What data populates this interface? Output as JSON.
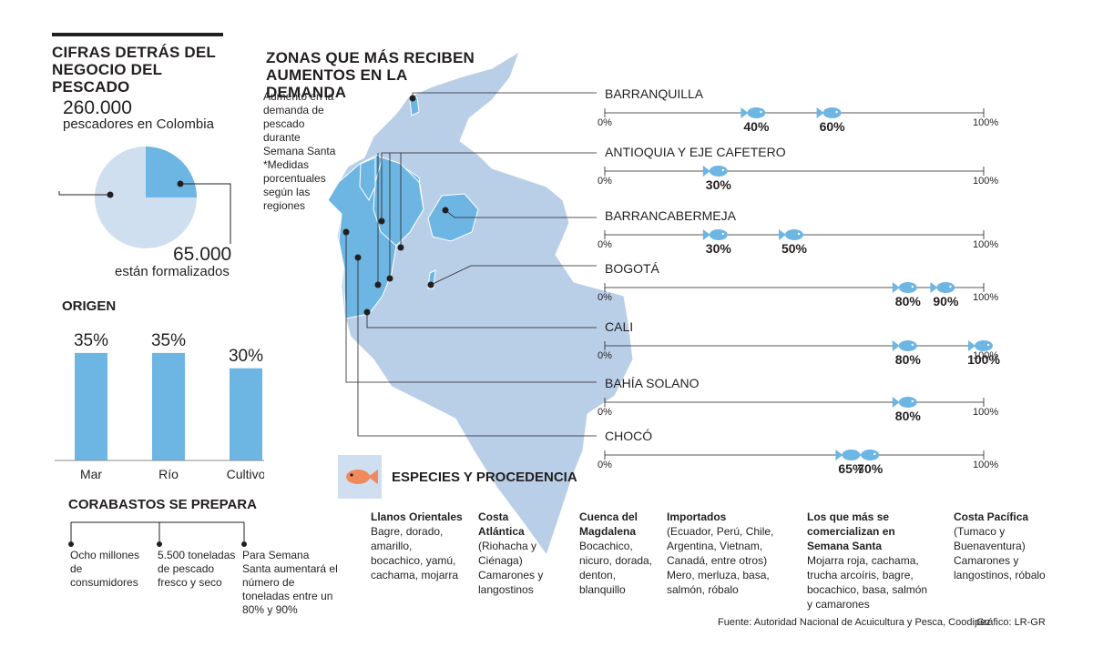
{
  "title": "CIFRAS DETRÁS DEL NEGOCIO DEL PESCADO",
  "fishermen": {
    "total_value": "260.000",
    "total_label": "pescadores en Colombia",
    "formal_value": "65.000",
    "formal_label": "están formalizados"
  },
  "origen": {
    "title": "ORIGEN"
  },
  "corabastos": {
    "title": "CORABASTOS SE PREPARA",
    "items": [
      "Ocho millones de consumidores",
      "5.500 toneladas de pescado fresco y seco",
      "Para Semana Santa aumentará el número de toneladas entre un 80% y 90%"
    ]
  },
  "zonas": {
    "title": "ZONAS QUE MÁS RECIBEN AUMENTOS EN LA DEMANDA",
    "note": "Aumento en la demanda de pescado durante Semana Santa *Medidas porcentuales según las regiones",
    "axis_start": "0%",
    "axis_end": "100%"
  },
  "especies": {
    "title": "ESPECIES Y PROCEDENCIA",
    "columns": [
      {
        "head": "Llanos Orientales",
        "body": "Bagre, dorado, amarillo, bocachico, yamú, cachama, mojarra"
      },
      {
        "head": "Costa Atlántica",
        "body": "(Riohacha y Ciénaga) Camarones y langostinos"
      },
      {
        "head": "Cuenca del Magdalena",
        "body": "Bocachico, nicuro, dorada, denton, blanquillo"
      },
      {
        "head": "Importados",
        "body": "(Ecuador, Perú, Chile, Argentina, Vietnam, Canadá, entre otros) Mero, merluza, basa, salmón, róbalo"
      },
      {
        "head": "Los que más se comercializan en Semana Santa",
        "body": "Mojarra roja, cachama, trucha arcoíris, bagre, bocachico, basa, salmón y camarones"
      },
      {
        "head": "Costa Pacífica",
        "body": "(Tumaco y Buenaventura) Camarones y langostinos, róbalo"
      }
    ]
  },
  "source": "Fuente: Autoridad Nacional de Acuicultura y Pesca, Coodipez",
  "graphic": "Gráfico: LR-GR",
  "colors": {
    "accent": "#6db6e3",
    "pie_light": "#cfdff0",
    "map": "#b9cfe8",
    "map_highlight": "#6db6e3",
    "text": "#231f20"
  },
  "chart_data": [
    {
      "type": "pie",
      "labels": [
        "pescadores en Colombia",
        "están formalizados"
      ],
      "values": [
        195000,
        65000
      ]
    },
    {
      "type": "bar",
      "title": "ORIGEN",
      "categories": [
        "Mar",
        "Río",
        "Cultivo"
      ],
      "values": [
        35,
        35,
        30
      ],
      "value_labels": [
        "35%",
        "35%",
        "30%"
      ],
      "ylim": [
        0,
        40
      ]
    },
    {
      "type": "scatter",
      "title": "ZONAS QUE MÁS RECIBEN AUMENTOS EN LA DEMANDA",
      "xlim": [
        0,
        100
      ],
      "regions": [
        {
          "name": "BARRANQUILLA",
          "values": [
            40,
            60
          ],
          "labels": [
            "40%",
            "60%"
          ]
        },
        {
          "name": "ANTIOQUIA Y EJE CAFETERO",
          "values": [
            30
          ],
          "labels": [
            "30%"
          ]
        },
        {
          "name": "BARRANCABERMEJA",
          "values": [
            30,
            50
          ],
          "labels": [
            "30%",
            "50%"
          ]
        },
        {
          "name": "BOGOTÁ",
          "values": [
            80,
            90
          ],
          "labels": [
            "80%",
            "90%"
          ]
        },
        {
          "name": "CALI",
          "values": [
            80,
            100
          ],
          "labels": [
            "80%",
            "100%"
          ]
        },
        {
          "name": "BAHÍA SOLANO",
          "values": [
            80
          ],
          "labels": [
            "80%"
          ]
        },
        {
          "name": "CHOCÓ",
          "values": [
            65,
            70
          ],
          "labels": [
            "65%",
            "70%"
          ]
        }
      ]
    }
  ]
}
